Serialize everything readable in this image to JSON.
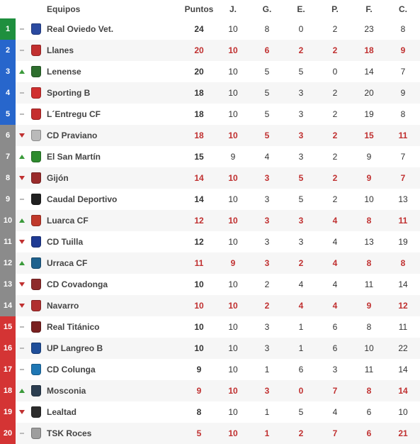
{
  "table": {
    "headers": {
      "team": "Equipos",
      "points": "Puntos",
      "played": "J.",
      "won": "G.",
      "drawn": "E.",
      "lost": "P.",
      "for": "F.",
      "against": "C."
    },
    "zone_colors": {
      "promotion": "#1e8f3e",
      "playoff": "#2766cc",
      "mid": "#8b8b8b",
      "relegation": "#d43434"
    },
    "rows": [
      {
        "pos": 1,
        "zone": "promotion",
        "trend": "same",
        "team": "Real Oviedo Vet.",
        "badge_color": "#2b4aa0",
        "pts": 24,
        "j": 10,
        "g": 8,
        "e": 0,
        "p": 2,
        "f": 23,
        "c": 8,
        "highlight": false
      },
      {
        "pos": 2,
        "zone": "playoff",
        "trend": "same",
        "team": "Llanes",
        "badge_color": "#c23030",
        "pts": 20,
        "j": 10,
        "g": 6,
        "e": 2,
        "p": 2,
        "f": 18,
        "c": 9,
        "highlight": true
      },
      {
        "pos": 3,
        "zone": "playoff",
        "trend": "up",
        "team": "Lenense",
        "badge_color": "#2e6e2e",
        "pts": 20,
        "j": 10,
        "g": 5,
        "e": 5,
        "p": 0,
        "f": 14,
        "c": 7,
        "highlight": false
      },
      {
        "pos": 4,
        "zone": "playoff",
        "trend": "same",
        "team": "Sporting B",
        "badge_color": "#d03030",
        "pts": 18,
        "j": 10,
        "g": 5,
        "e": 3,
        "p": 2,
        "f": 20,
        "c": 9,
        "highlight": false
      },
      {
        "pos": 5,
        "zone": "playoff",
        "trend": "same",
        "team": "L´Entregu CF",
        "badge_color": "#c52e2e",
        "pts": 18,
        "j": 10,
        "g": 5,
        "e": 3,
        "p": 2,
        "f": 19,
        "c": 8,
        "highlight": false
      },
      {
        "pos": 6,
        "zone": "mid",
        "trend": "down",
        "team": "CD Praviano",
        "badge_color": "#bababa",
        "pts": 18,
        "j": 10,
        "g": 5,
        "e": 3,
        "p": 2,
        "f": 15,
        "c": 11,
        "highlight": true
      },
      {
        "pos": 7,
        "zone": "mid",
        "trend": "up",
        "team": "El San Martín",
        "badge_color": "#2e8b2e",
        "pts": 15,
        "j": 9,
        "g": 4,
        "e": 3,
        "p": 2,
        "f": 9,
        "c": 7,
        "highlight": false
      },
      {
        "pos": 8,
        "zone": "mid",
        "trend": "down",
        "team": "Gijón",
        "badge_color": "#9a2c2c",
        "pts": 14,
        "j": 10,
        "g": 3,
        "e": 5,
        "p": 2,
        "f": 9,
        "c": 7,
        "highlight": true
      },
      {
        "pos": 9,
        "zone": "mid",
        "trend": "same",
        "team": "Caudal Deportivo",
        "badge_color": "#202020",
        "pts": 14,
        "j": 10,
        "g": 3,
        "e": 5,
        "p": 2,
        "f": 10,
        "c": 13,
        "highlight": false
      },
      {
        "pos": 10,
        "zone": "mid",
        "trend": "up",
        "team": "Luarca CF",
        "badge_color": "#c0392b",
        "pts": 12,
        "j": 10,
        "g": 3,
        "e": 3,
        "p": 4,
        "f": 8,
        "c": 11,
        "highlight": true
      },
      {
        "pos": 11,
        "zone": "mid",
        "trend": "down",
        "team": "CD Tuilla",
        "badge_color": "#1f3a93",
        "pts": 12,
        "j": 10,
        "g": 3,
        "e": 3,
        "p": 4,
        "f": 13,
        "c": 19,
        "highlight": false
      },
      {
        "pos": 12,
        "zone": "mid",
        "trend": "up",
        "team": "Urraca CF",
        "badge_color": "#1f618d",
        "pts": 11,
        "j": 9,
        "g": 3,
        "e": 2,
        "p": 4,
        "f": 8,
        "c": 8,
        "highlight": true
      },
      {
        "pos": 13,
        "zone": "mid",
        "trend": "down",
        "team": "CD Covadonga",
        "badge_color": "#8e2b2b",
        "pts": 10,
        "j": 10,
        "g": 2,
        "e": 4,
        "p": 4,
        "f": 11,
        "c": 14,
        "highlight": false
      },
      {
        "pos": 14,
        "zone": "mid",
        "trend": "down",
        "team": "Navarro",
        "badge_color": "#b03030",
        "pts": 10,
        "j": 10,
        "g": 2,
        "e": 4,
        "p": 4,
        "f": 9,
        "c": 12,
        "highlight": true
      },
      {
        "pos": 15,
        "zone": "relegation",
        "trend": "same",
        "team": "Real Titánico",
        "badge_color": "#7a2020",
        "pts": 10,
        "j": 10,
        "g": 3,
        "e": 1,
        "p": 6,
        "f": 8,
        "c": 11,
        "highlight": false
      },
      {
        "pos": 16,
        "zone": "relegation",
        "trend": "same",
        "team": "UP Langreo B",
        "badge_color": "#1f4e99",
        "pts": 10,
        "j": 10,
        "g": 3,
        "e": 1,
        "p": 6,
        "f": 10,
        "c": 22,
        "highlight": false
      },
      {
        "pos": 17,
        "zone": "relegation",
        "trend": "same",
        "team": "CD Colunga",
        "badge_color": "#1f77b4",
        "pts": 9,
        "j": 10,
        "g": 1,
        "e": 6,
        "p": 3,
        "f": 11,
        "c": 14,
        "highlight": false
      },
      {
        "pos": 18,
        "zone": "relegation",
        "trend": "up",
        "team": "Mosconia",
        "badge_color": "#2c3e50",
        "pts": 9,
        "j": 10,
        "g": 3,
        "e": 0,
        "p": 7,
        "f": 8,
        "c": 14,
        "highlight": true
      },
      {
        "pos": 19,
        "zone": "relegation",
        "trend": "down",
        "team": "Lealtad",
        "badge_color": "#2c2c2c",
        "pts": 8,
        "j": 10,
        "g": 1,
        "e": 5,
        "p": 4,
        "f": 6,
        "c": 10,
        "highlight": false
      },
      {
        "pos": 20,
        "zone": "relegation",
        "trend": "same",
        "team": "TSK Roces",
        "badge_color": "#9e9e9e",
        "pts": 5,
        "j": 10,
        "g": 1,
        "e": 2,
        "p": 7,
        "f": 6,
        "c": 21,
        "highlight": true
      }
    ]
  }
}
